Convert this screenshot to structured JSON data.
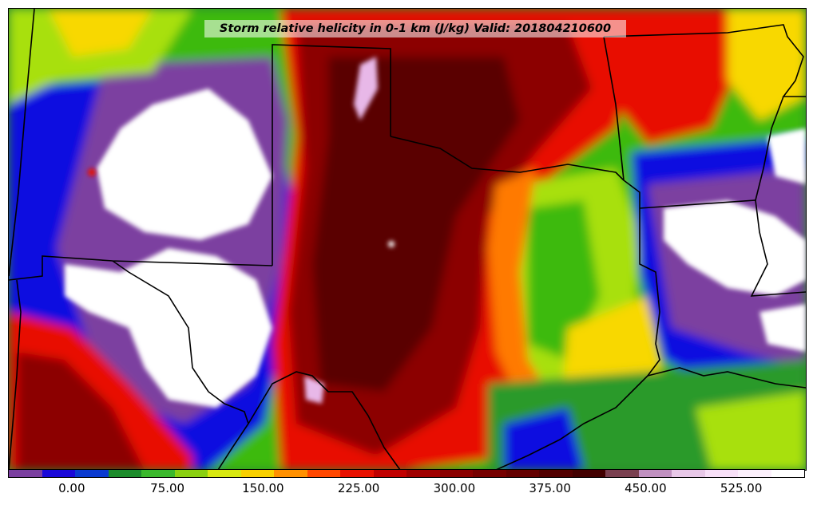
{
  "map": {
    "title": "Storm relative helicity in 0-1 km (J/kg) Valid: 201804210600",
    "variable": "Storm relative helicity in 0-1 km",
    "units": "J/kg",
    "valid_time": "201804210600",
    "colors": {
      "purple": "#7b3fa0",
      "blue": "#1010e0",
      "green": "#3cba10",
      "lime": "#a8e010",
      "yellow": "#f8d800",
      "orange": "#ff7a00",
      "red": "#e81000",
      "darkred": "#8c0000",
      "maroon": "#5a0000",
      "pink": "#e8b8e8",
      "white": "#ffffff",
      "boundary": "#000000"
    }
  },
  "colorbar": {
    "segments": [
      "#7b3fa0",
      "#1a08d8",
      "#0a3ad0",
      "#1c8c2c",
      "#3ab82c",
      "#8ad010",
      "#d8e810",
      "#f8d000",
      "#ff9000",
      "#ff4800",
      "#e81000",
      "#c00000",
      "#a00000",
      "#8a0000",
      "#760000",
      "#640000",
      "#520000",
      "#420000",
      "#7a4050",
      "#c090c0",
      "#e8c8e8",
      "#f8e0f8",
      "#fcf0fc",
      "#ffffff"
    ],
    "labels": [
      "0.00",
      "75.00",
      "150.00",
      "225.00",
      "300.00",
      "375.00",
      "450.00",
      "525.00"
    ],
    "label_values": [
      0,
      75,
      150,
      225,
      300,
      375,
      450,
      525
    ],
    "min": -50,
    "max": 575
  }
}
